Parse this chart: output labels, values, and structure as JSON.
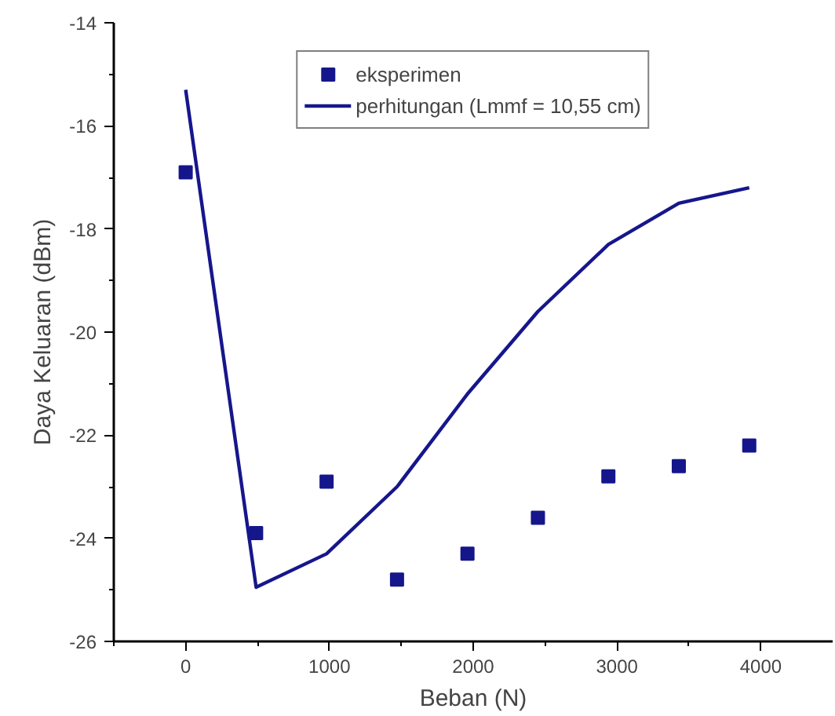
{
  "chart_data": {
    "type": "scatter",
    "xlabel": "Beban (N)",
    "ylabel": "Daya Keluaran (dBm)",
    "x": [
      0,
      490,
      980,
      1470,
      1960,
      2450,
      2940,
      3430,
      3920
    ],
    "series": [
      {
        "name": "eksperimen",
        "marker": "square",
        "color": "#16168c",
        "values": [
          -16.9,
          -23.9,
          -22.9,
          -24.8,
          -24.3,
          -23.6,
          -22.8,
          -22.6,
          -22.2
        ]
      },
      {
        "name": "perhitungan (Lmmf = 10,55 cm)",
        "type": "line",
        "line_style": "solid",
        "color": "#16168c",
        "values": [
          -15.3,
          -24.95,
          -24.3,
          -23.0,
          -21.2,
          -19.6,
          -18.3,
          -17.5,
          -17.2
        ]
      }
    ],
    "xlim": [
      -500,
      4500
    ],
    "ylim": [
      -26,
      -14
    ],
    "xticks": [
      {
        "value": -500,
        "label": null
      },
      0,
      {
        "value": 500,
        "label": null
      },
      1000,
      {
        "value": 1500,
        "label": null
      },
      2000,
      {
        "value": 2500,
        "label": null
      },
      3000,
      {
        "value": 3500,
        "label": null
      },
      4000
    ],
    "yticks": [
      -26,
      {
        "value": -25,
        "label": null
      },
      -24,
      {
        "value": -23,
        "label": null
      },
      -22,
      {
        "value": -21,
        "label": null
      },
      -20,
      {
        "value": -19,
        "label": null
      },
      -18,
      {
        "value": -17,
        "label": null
      },
      -16,
      {
        "value": -15,
        "label": null
      },
      -14
    ],
    "grid": false,
    "legend": "top"
  }
}
